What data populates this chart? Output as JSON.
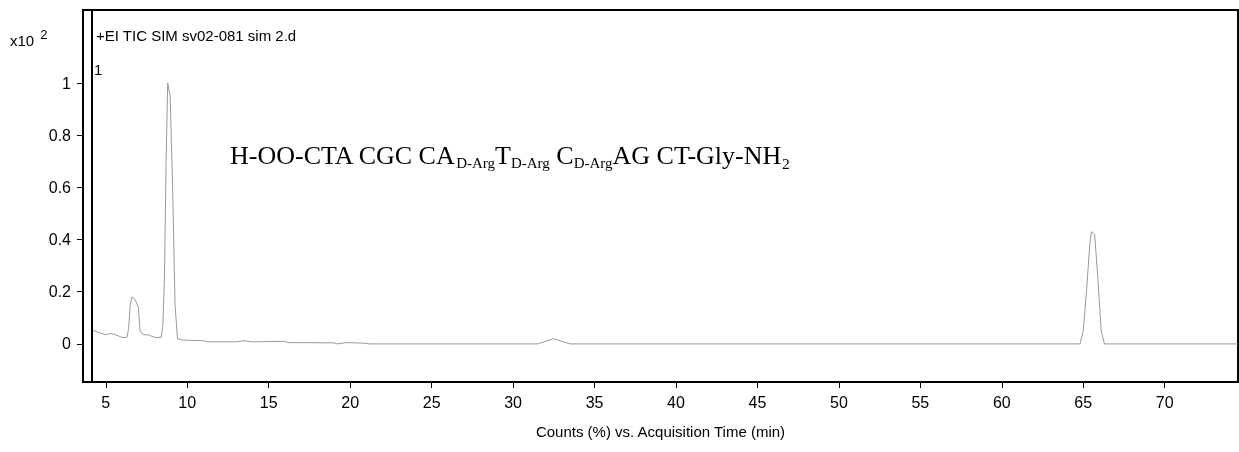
{
  "chart_data": {
    "type": "line",
    "title": "+EI TIC SIM sv02-081 sim 2.d",
    "xlabel": "Counts (%) vs. Acquisition Time (min)",
    "ylabel": "x10$^{2}$",
    "annotations": [
      "1",
      "H-OO-CTA CGC CA$_{D-Arg}$T$_{D-Arg}$ C$_{D-Arg}$AG CT-Gly-NH₂"
    ],
    "series": [
      {
        "color": "#999999",
        "x": [
          4.15,
          4.5,
          5.0,
          5.3,
          5.6,
          6.0,
          6.3,
          6.4,
          6.5,
          6.6,
          6.8,
          7.0,
          7.1,
          7.3,
          7.6,
          8.0,
          8.4,
          8.5,
          8.6,
          8.7,
          8.8,
          8.95,
          9.1,
          9.25,
          9.4,
          9.7,
          11,
          11.2,
          13,
          13.5,
          14,
          16,
          16.2,
          19,
          19.2,
          19.8,
          20.8,
          21.2,
          22,
          31.5,
          32,
          32.5,
          33,
          33.5,
          64.8,
          65.0,
          65.2,
          65.4,
          65.5,
          65.7,
          65.9,
          66.1,
          66.3,
          74.5
        ],
        "values": [
          0.055,
          0.045,
          0.035,
          0.04,
          0.035,
          0.025,
          0.025,
          0.06,
          0.15,
          0.18,
          0.17,
          0.14,
          0.05,
          0.035,
          0.035,
          0.025,
          0.025,
          0.07,
          0.25,
          0.7,
          1.0,
          0.95,
          0.6,
          0.15,
          0.02,
          0.015,
          0.012,
          0.008,
          0.008,
          0.012,
          0.008,
          0.01,
          0.005,
          0.004,
          0,
          0.005,
          0.003,
          0,
          0,
          0,
          0.01,
          0.02,
          0.01,
          0,
          0,
          0.05,
          0.2,
          0.38,
          0.43,
          0.42,
          0.25,
          0.05,
          0,
          0
        ]
      }
    ],
    "ref_lines": [
      {
        "axis": "x",
        "value": 4.15,
        "color": "#000000"
      }
    ],
    "xlim": [
      3.6,
      74.5
    ],
    "xticks": [
      5,
      10,
      15,
      20,
      25,
      30,
      35,
      40,
      45,
      50,
      55,
      60,
      65,
      70
    ],
    "ylim": [
      -0.146,
      1.28
    ],
    "yticks": [
      0,
      0.2,
      0.4,
      0.6,
      0.8,
      1
    ],
    "grid": false,
    "marker": "none",
    "line_style": "solid"
  }
}
